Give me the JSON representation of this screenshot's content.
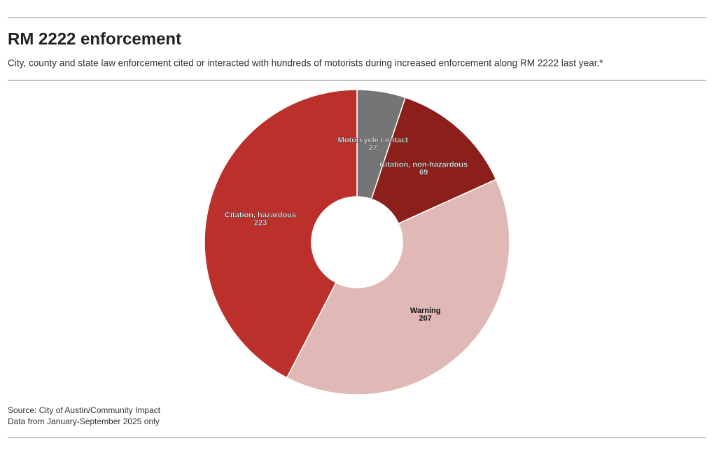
{
  "chart_data": {
    "type": "pie",
    "title": "RM 2222 enforcement",
    "subtitle": "City, county and state law enforcement cited or interacted with hundreds of motorists during increased enforcement along RM 2222 last year.*",
    "categories": [
      "Motorcycle contact",
      "Citation, non-hazardous",
      "Warning",
      "Citation, hazardous"
    ],
    "values": [
      27,
      69,
      207,
      223
    ],
    "colors": [
      "#757575",
      "#8a2019",
      "#e0b8b5",
      "#bb302b"
    ],
    "source": "Source: City of Austin/Community Impact",
    "note": "Data from January-September 2025 only"
  }
}
